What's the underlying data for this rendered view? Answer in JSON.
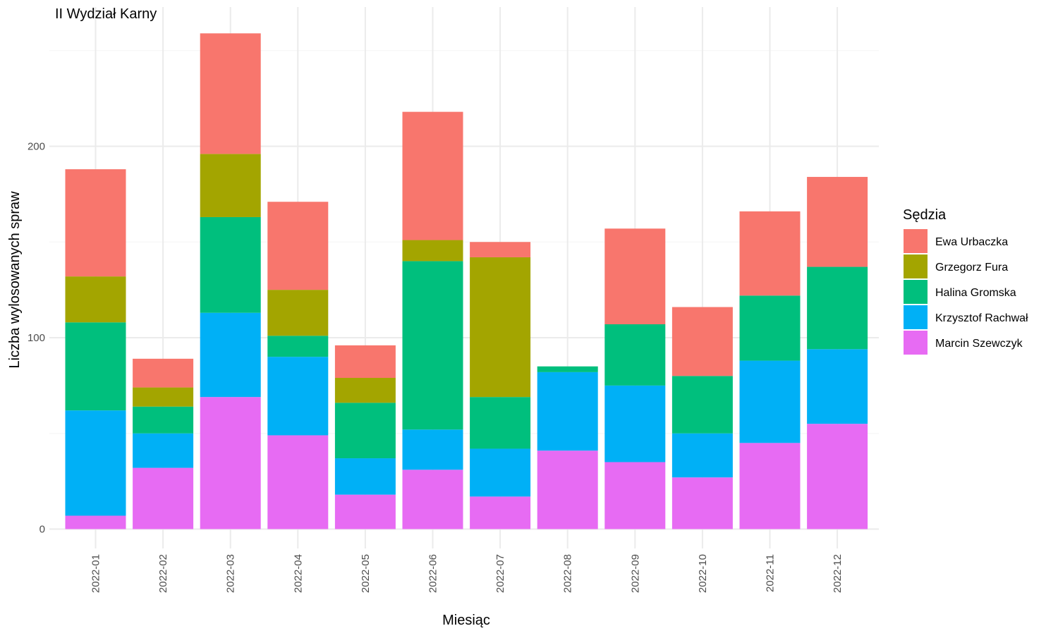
{
  "chart_data": {
    "type": "bar",
    "stacked": true,
    "title": "II Wydział Karny",
    "xlabel": "Miesiąc",
    "ylabel": "Liczba wylosowanych spraw",
    "ylim": [
      0,
      260
    ],
    "yticks": [
      0,
      100,
      200
    ],
    "grid": true,
    "legend": {
      "title": "Sędzia",
      "placement": "right"
    },
    "categories": [
      "2022-01",
      "2022-02",
      "2022-03",
      "2022-04",
      "2022-05",
      "2022-06",
      "2022-07",
      "2022-08",
      "2022-09",
      "2022-10",
      "2022-11",
      "2022-12"
    ],
    "series": [
      {
        "name": "Marcin Szewczyk",
        "color": "#E76BF3",
        "values": [
          7,
          32,
          69,
          49,
          18,
          31,
          17,
          41,
          35,
          27,
          45,
          55
        ]
      },
      {
        "name": "Krzysztof Rachwał",
        "color": "#00B0F6",
        "values": [
          55,
          18,
          44,
          41,
          19,
          21,
          25,
          41,
          40,
          23,
          43,
          39
        ]
      },
      {
        "name": "Halina Gromska",
        "color": "#00BF7D",
        "values": [
          46,
          14,
          50,
          11,
          29,
          88,
          27,
          3,
          32,
          30,
          34,
          43
        ]
      },
      {
        "name": "Grzegorz Fura",
        "color": "#A3A500",
        "values": [
          24,
          10,
          33,
          24,
          13,
          11,
          73,
          0,
          0,
          0,
          0,
          0
        ]
      },
      {
        "name": "Ewa Urbaczka",
        "color": "#F8766D",
        "values": [
          56,
          15,
          63,
          46,
          17,
          67,
          8,
          0,
          50,
          36,
          44,
          47
        ]
      }
    ],
    "legend_order": [
      "Ewa Urbaczka",
      "Grzegorz Fura",
      "Halina Gromska",
      "Krzysztof Rachwał",
      "Marcin Szewczyk"
    ]
  }
}
